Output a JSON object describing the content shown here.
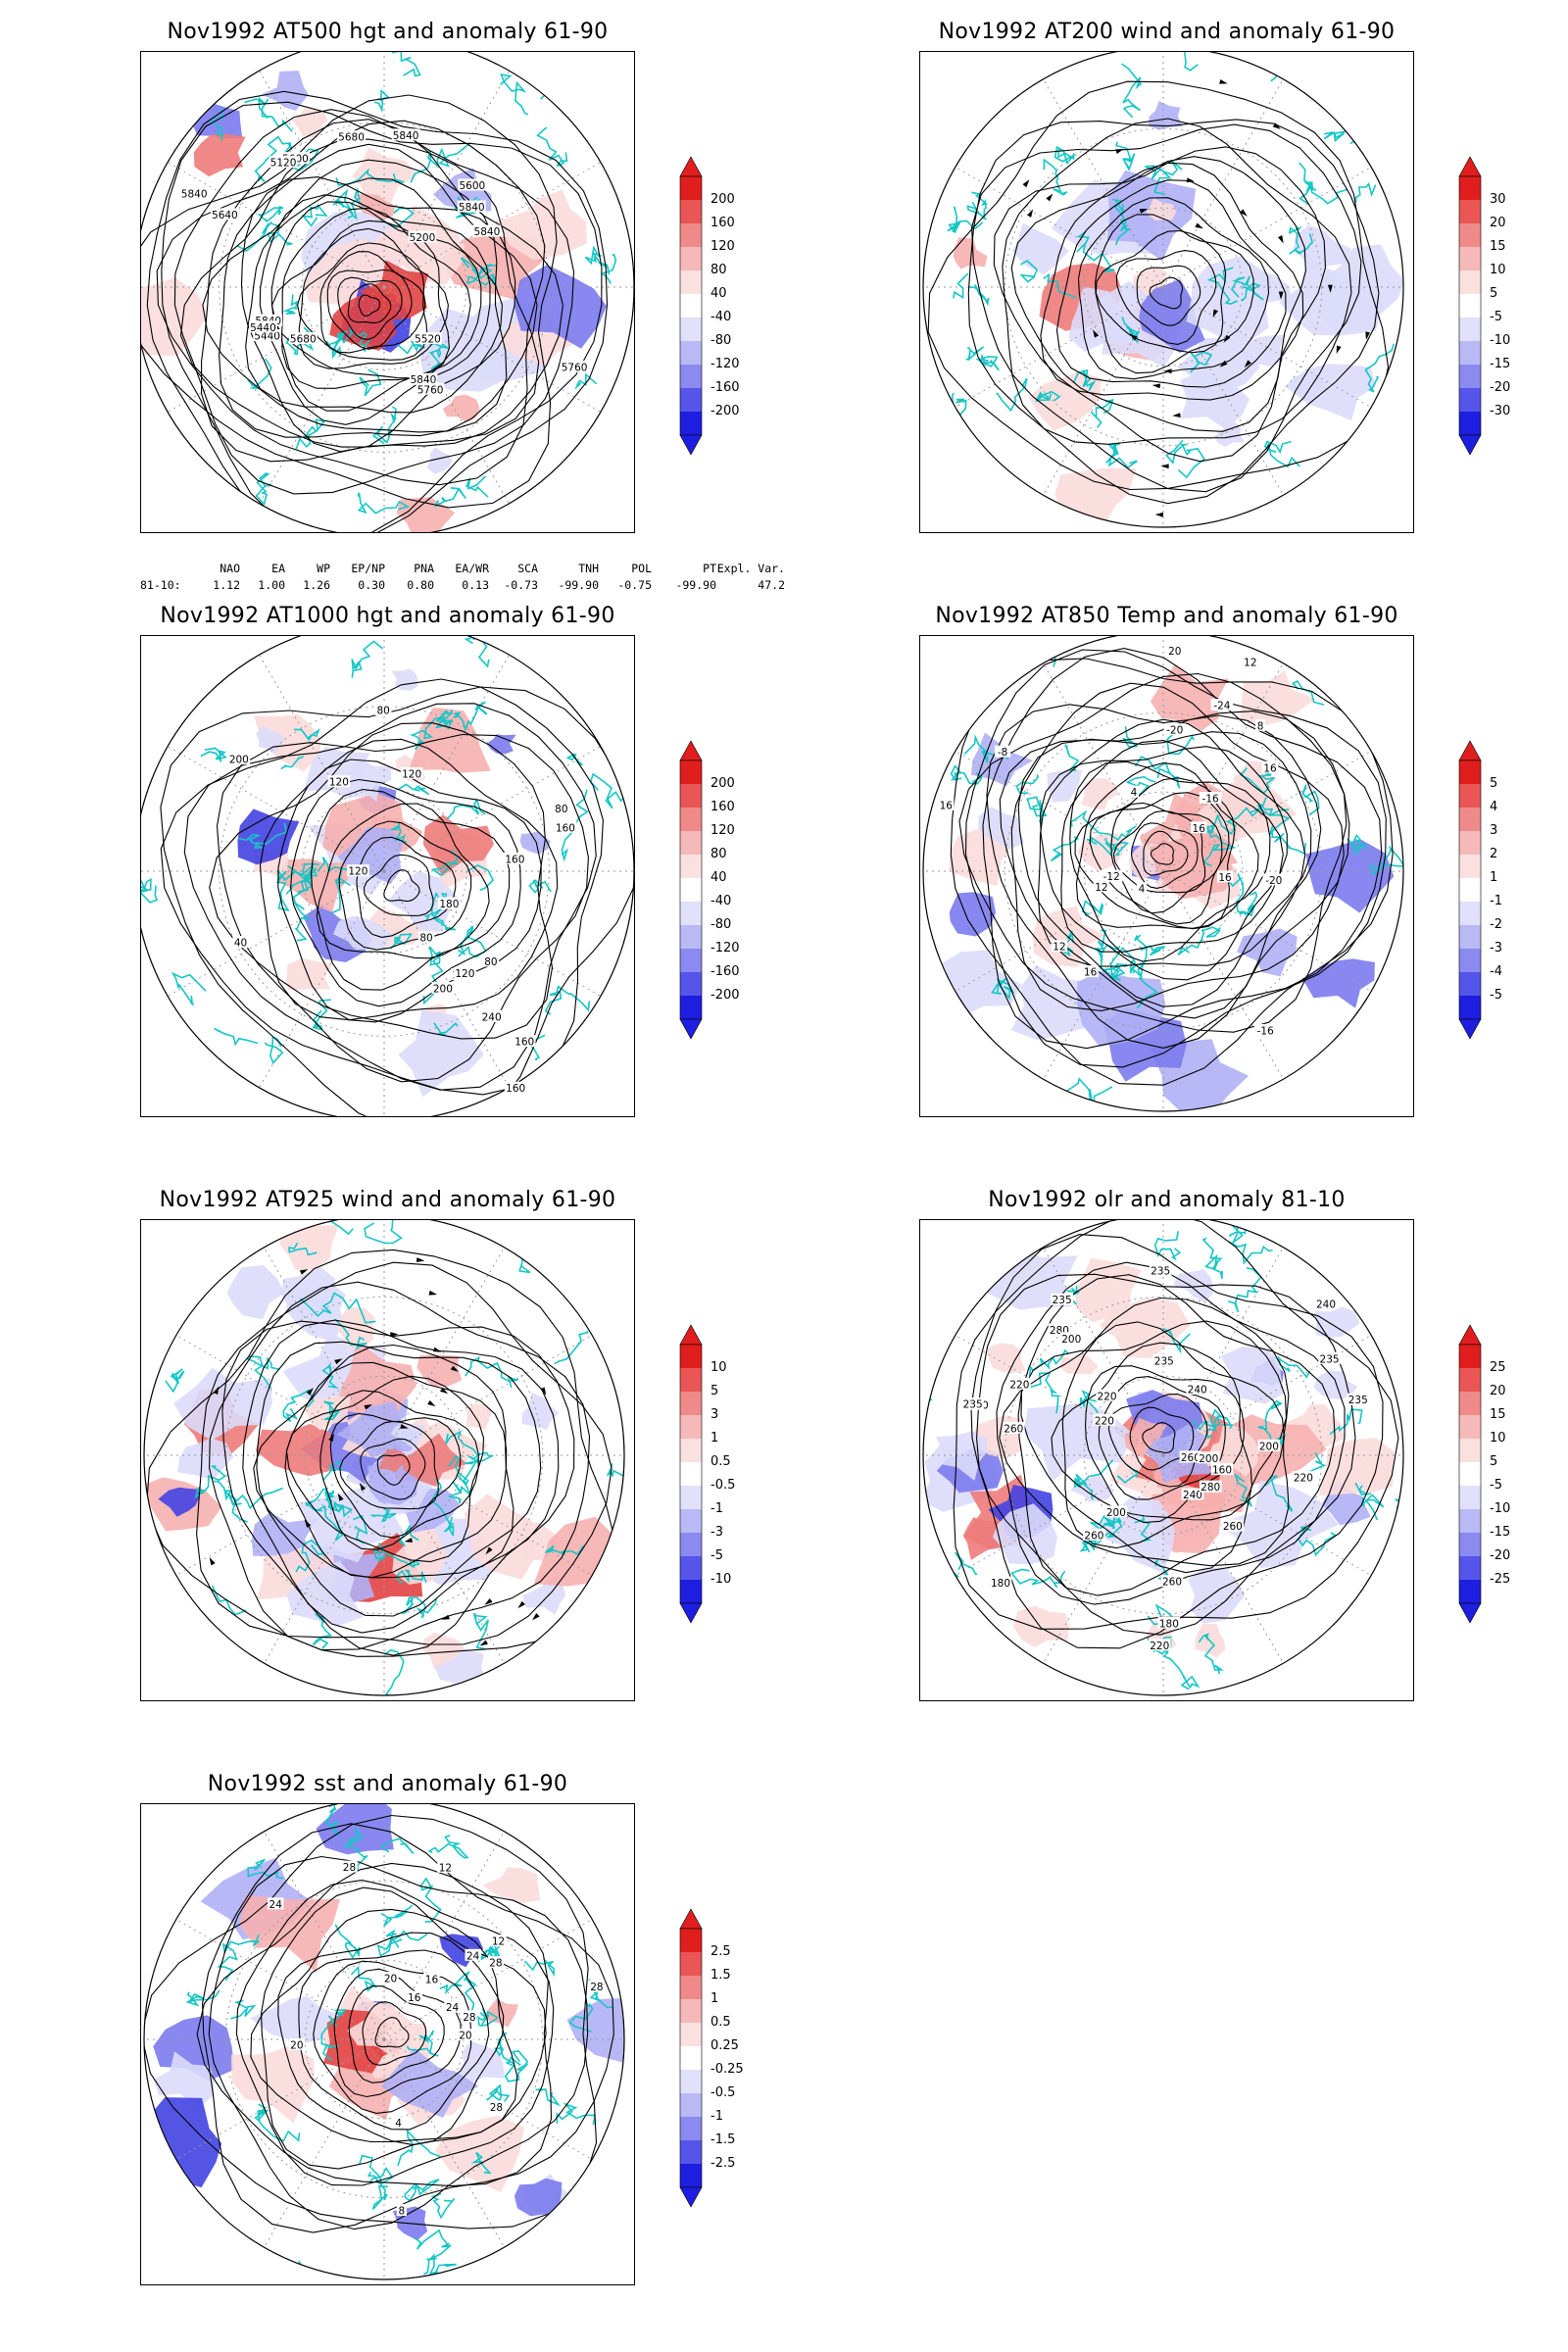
{
  "panels": [
    {
      "id": "p1",
      "title": "Nov1992 AT500 hgt and anomaly 61-90",
      "colorbar": [
        "200",
        "160",
        "120",
        "80",
        "40",
        "-40",
        "-80",
        "-120",
        "-160",
        "-200"
      ],
      "contour_labels": [
        "5840",
        "5840",
        "5840",
        "5840",
        "5760",
        "5680",
        "5600",
        "5440",
        "5120",
        "5120",
        "5200",
        "5440",
        "5520",
        "5600",
        "5680",
        "5760",
        "5640",
        "5840",
        "5840"
      ]
    },
    {
      "id": "p2",
      "title": "Nov1992 AT200 wind and anomaly 61-90",
      "colorbar": [
        "30",
        "20",
        "15",
        "10",
        "5",
        "-5",
        "-10",
        "-15",
        "-20",
        "-30"
      ],
      "contour_labels": []
    },
    {
      "id": "p3",
      "title": "Nov1992 AT1000 hgt and anomaly 61-90",
      "colorbar": [
        "200",
        "160",
        "120",
        "80",
        "40",
        "-40",
        "-80",
        "-120",
        "-160",
        "-200"
      ],
      "contour_labels": [
        "80",
        "80",
        "120",
        "160",
        "80",
        "120",
        "200",
        "160",
        "40",
        "80",
        "240",
        "200",
        "180",
        "160",
        "200",
        "160",
        "120",
        "120"
      ]
    },
    {
      "id": "p4",
      "title": "Nov1992 AT850 Temp and anomaly 61-90",
      "colorbar": [
        "5",
        "4",
        "3",
        "2",
        "1",
        "-1",
        "-2",
        "-3",
        "-4",
        "-5"
      ],
      "contour_labels": [
        "16",
        "12",
        "8",
        "4",
        "16",
        "-12",
        "-16",
        "-20",
        "-24",
        "-20",
        "-16",
        "-8",
        "12",
        "4",
        "16",
        "16",
        "12",
        "16",
        "20"
      ]
    },
    {
      "id": "p5",
      "title": "Nov1992 AT925 wind and anomaly 61-90",
      "colorbar": [
        "10",
        "5",
        "3",
        "1",
        "0.5",
        "-0.5",
        "-1",
        "-3",
        "-5",
        "-10"
      ],
      "contour_labels": []
    },
    {
      "id": "p6",
      "title": "Nov1992 olr and anomaly 81-10",
      "colorbar": [
        "25",
        "20",
        "15",
        "10",
        "5",
        "-5",
        "-10",
        "-15",
        "-20",
        "-25"
      ],
      "contour_labels": [
        "235",
        "200",
        "260",
        "220",
        "240",
        "235",
        "220",
        "260",
        "235",
        "200",
        "180",
        "160",
        "180",
        "220",
        "200",
        "240",
        "260",
        "280",
        "235",
        "220",
        "200",
        "240",
        "235",
        "260",
        "235",
        "220",
        "200",
        "260",
        "280"
      ]
    },
    {
      "id": "p7",
      "title": "Nov1992 sst and anomaly 61-90",
      "colorbar": [
        "2.5",
        "1.5",
        "1",
        "0.5",
        "0.25",
        "-0.25",
        "-0.5",
        "-1",
        "-1.5",
        "-2.5"
      ],
      "contour_labels": [
        "28",
        "28",
        "24",
        "24",
        "20",
        "16",
        "12",
        "8",
        "4",
        "20",
        "28",
        "24",
        "20",
        "16",
        "12",
        "28",
        "28"
      ]
    }
  ],
  "indices": {
    "headers": [
      "NAO",
      "EA",
      "WP",
      "EP/NP",
      "PNA",
      "EA/WR",
      "SCA",
      "TNH",
      "POL",
      "PT",
      "Expl. Var."
    ],
    "row_label": "81-10:",
    "values": [
      "1.12",
      "1.00",
      "1.26",
      "0.30",
      "0.80",
      "0.13",
      "-0.73",
      "-99.90",
      "-0.75",
      "-99.90",
      "47.2"
    ]
  },
  "colors": {
    "coast": "#16c6c6",
    "contour": "#000000",
    "warm_strong": "#e01e1e",
    "cold_strong": "#1f1fe6",
    "grid": "#9a9a9a"
  }
}
